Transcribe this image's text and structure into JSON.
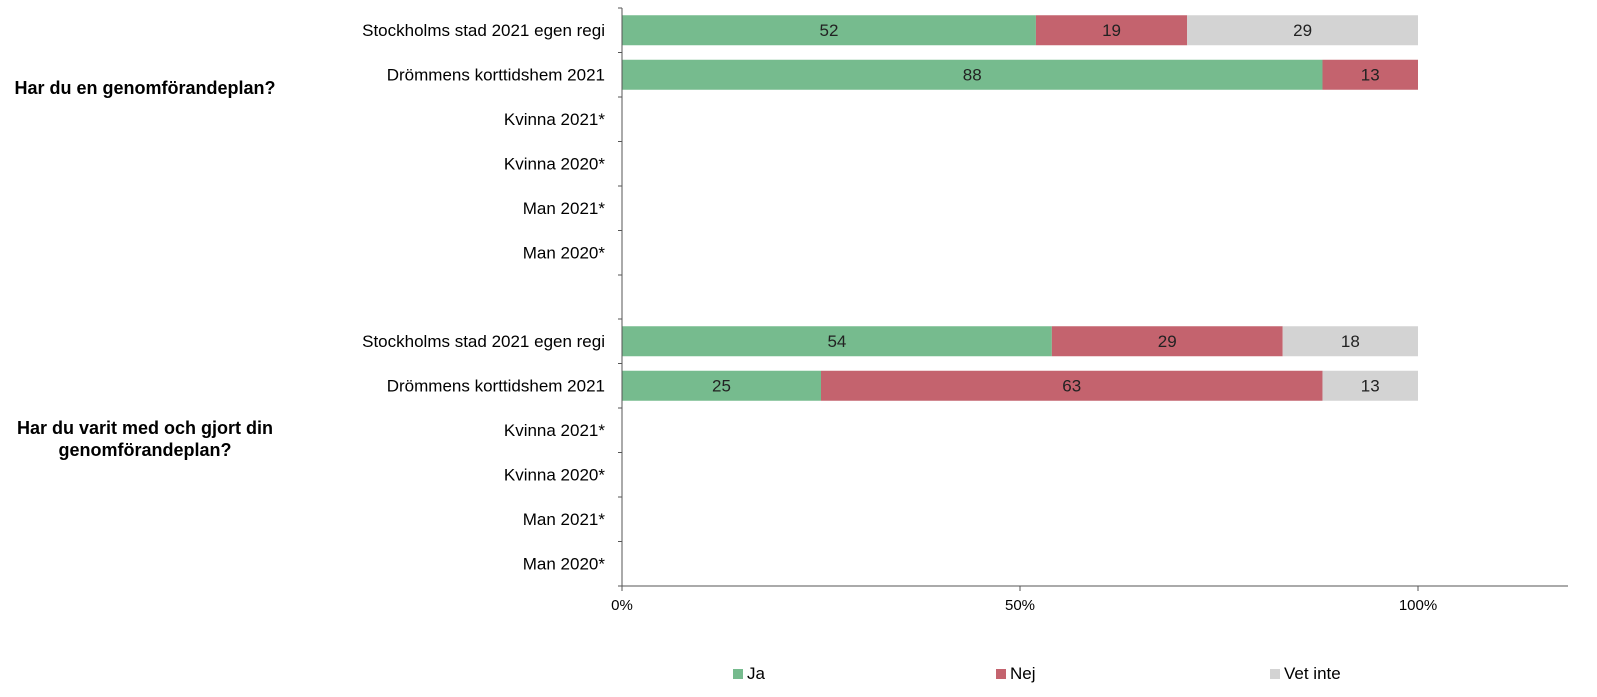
{
  "chart_data": {
    "type": "bar",
    "orientation": "horizontal",
    "stacked": true,
    "title": "",
    "xlabel": "",
    "ylabel": "",
    "xlim": [
      0,
      100
    ],
    "x_ticks": [
      "0%",
      "50%",
      "100%"
    ],
    "grid": false,
    "legend_position": "bottom",
    "series": [
      {
        "name": "Ja",
        "color": "#76BB8E"
      },
      {
        "name": "Nej",
        "color": "#C4636E"
      },
      {
        "name": "Vet inte",
        "color": "#D3D3D3"
      }
    ],
    "groups": [
      {
        "label": "Har du en genomförandeplan?",
        "rows": [
          {
            "category": "Stockholms stad 2021 egen regi",
            "values": [
              52,
              19,
              29
            ]
          },
          {
            "category": "Drömmens korttidshem 2021",
            "values": [
              88,
              13,
              null
            ]
          },
          {
            "category": "Kvinna 2021*",
            "values": [
              null,
              null,
              null
            ]
          },
          {
            "category": "Kvinna 2020*",
            "values": [
              null,
              null,
              null
            ]
          },
          {
            "category": "Man 2021*",
            "values": [
              null,
              null,
              null
            ]
          },
          {
            "category": "Man 2020*",
            "values": [
              null,
              null,
              null
            ]
          }
        ]
      },
      {
        "label": "Har du varit med och gjort din genomförandeplan?",
        "rows": [
          {
            "category": "Stockholms stad 2021 egen regi",
            "values": [
              54,
              29,
              18
            ]
          },
          {
            "category": "Drömmens korttidshem 2021",
            "values": [
              25,
              63,
              13
            ]
          },
          {
            "category": "Kvinna 2021*",
            "values": [
              null,
              null,
              null
            ]
          },
          {
            "category": "Kvinna 2020*",
            "values": [
              null,
              null,
              null
            ]
          },
          {
            "category": "Man 2021*",
            "values": [
              null,
              null,
              null
            ]
          },
          {
            "category": "Man 2020*",
            "values": [
              null,
              null,
              null
            ]
          }
        ]
      }
    ]
  }
}
